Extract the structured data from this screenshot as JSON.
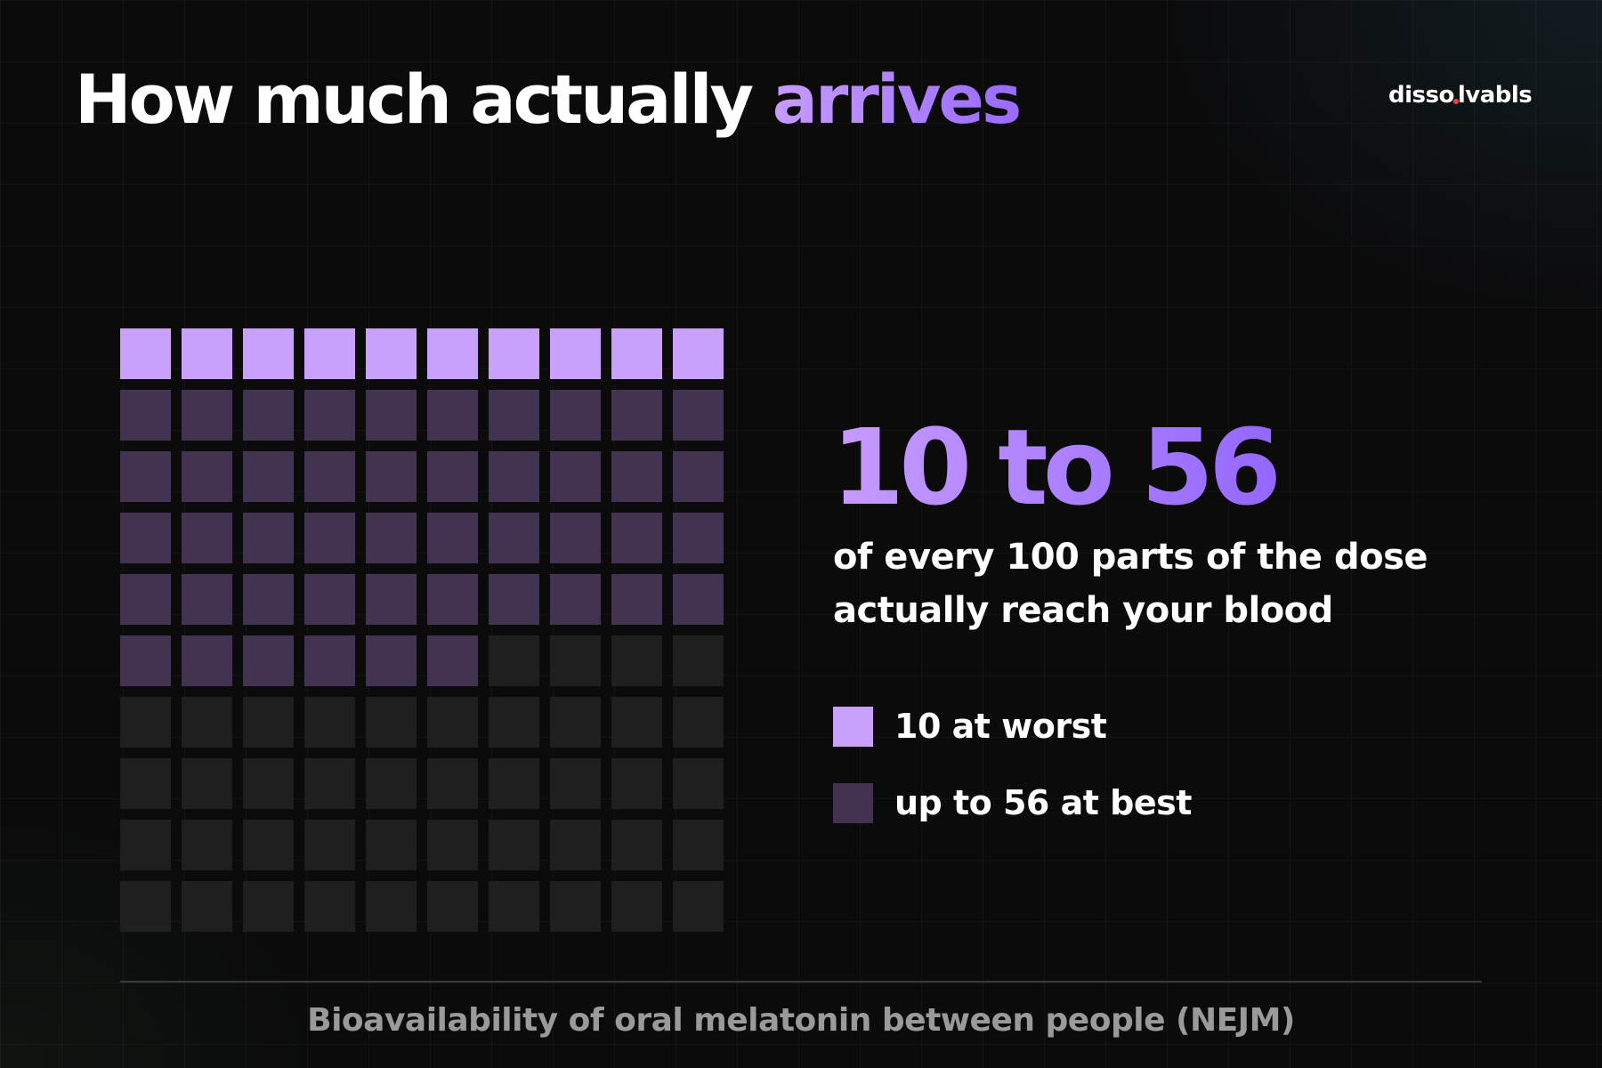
{
  "header": {
    "title_main": "How much actually ",
    "title_accent": "arrives",
    "logo_text_a": "disso",
    "logo_text_b": "lvabls"
  },
  "chart_data": {
    "type": "waffle",
    "title": "How much actually arrives",
    "total": 100,
    "rows": 10,
    "columns": 10,
    "series": [
      {
        "name": "10 at worst",
        "value": 10,
        "color": "#c9a1fc"
      },
      {
        "name": "up to 56 at best",
        "value": 56,
        "color": "#433352"
      }
    ],
    "empty_color": "#1f1f20",
    "headline": "10 to 56",
    "description": "of every 100 parts of the dose actually reach your blood",
    "source": "Bioavailability of oral melatonin between people (NEJM)"
  },
  "legend": {
    "worst_label": "10 at worst",
    "best_label": "up to 56 at best"
  },
  "colors": {
    "accent_light": "#c9a1fc",
    "accent_dark": "#433352",
    "empty": "#1f1f20",
    "background": "#0b0b0c"
  }
}
